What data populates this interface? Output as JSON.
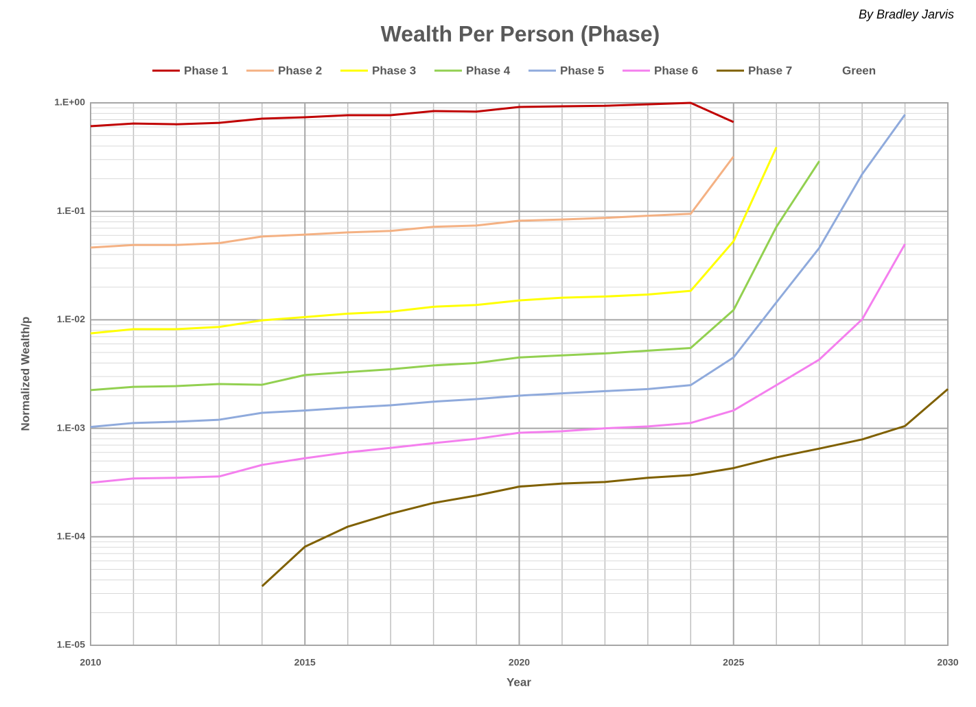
{
  "chart_data": {
    "type": "line",
    "title": "Wealth Per Person (Phase)",
    "author": "By Bradley Jarvis",
    "x_label": "Year",
    "y_label": "Normalized Wealth/p",
    "log_y": true,
    "grid": true,
    "minor_grid": true,
    "legend": "top",
    "xlim": [
      2010,
      2030
    ],
    "xticks": [
      2010,
      2015,
      2020,
      2025,
      2030
    ],
    "ylim": [
      1e-05,
      1
    ],
    "yticks": [
      {
        "value": 1,
        "label": "1.E+00"
      },
      {
        "value": 0.1,
        "label": "1.E-01"
      },
      {
        "value": 0.01,
        "label": "1.E-02"
      },
      {
        "value": 0.001,
        "label": "1.E-03"
      },
      {
        "value": 0.0001,
        "label": "1.E-04"
      },
      {
        "value": 1e-05,
        "label": "1.E-05"
      }
    ],
    "x": [
      2010,
      2011,
      2012,
      2013,
      2014,
      2015,
      2016,
      2017,
      2018,
      2019,
      2020,
      2021,
      2022,
      2023,
      2024,
      2025,
      2026,
      2027,
      2028,
      2029,
      2030
    ],
    "series": [
      {
        "name": "Phase 1",
        "color": "#c00000",
        "values": [
          0.61,
          0.645,
          0.635,
          0.655,
          0.715,
          0.737,
          0.77,
          0.77,
          0.84,
          0.83,
          0.916,
          0.93,
          0.94,
          0.97,
          1.0,
          0.665,
          null,
          null,
          null,
          null,
          null
        ]
      },
      {
        "name": "Phase 2",
        "color": "#f4b183",
        "values": [
          0.0464,
          0.049,
          0.049,
          0.051,
          0.0586,
          0.061,
          0.064,
          0.066,
          0.072,
          0.074,
          0.082,
          0.084,
          0.087,
          0.091,
          0.095,
          0.32,
          null,
          null,
          null,
          null,
          null
        ]
      },
      {
        "name": "Phase 3",
        "color": "#ffff00",
        "values": [
          0.0075,
          0.0082,
          0.0082,
          0.0086,
          0.0099,
          0.0106,
          0.0114,
          0.0119,
          0.0132,
          0.0137,
          0.0151,
          0.016,
          0.0164,
          0.0171,
          0.0185,
          0.053,
          0.39,
          null,
          null,
          null,
          null
        ]
      },
      {
        "name": "Phase 4",
        "color": "#92d050",
        "values": [
          0.00225,
          0.00241,
          0.00245,
          0.00256,
          0.00252,
          0.0031,
          0.0033,
          0.0035,
          0.0038,
          0.004,
          0.0045,
          0.0047,
          0.0049,
          0.0052,
          0.0055,
          0.0123,
          0.072,
          0.29,
          null,
          null,
          null
        ]
      },
      {
        "name": "Phase 5",
        "color": "#8faadc",
        "values": [
          0.00103,
          0.00112,
          0.00115,
          0.0012,
          0.00139,
          0.00146,
          0.00155,
          0.00163,
          0.00176,
          0.00186,
          0.002,
          0.0021,
          0.0022,
          0.0023,
          0.0025,
          0.0045,
          0.0145,
          0.046,
          0.22,
          0.78,
          null
        ]
      },
      {
        "name": "Phase 6",
        "color": "#f47fee",
        "values": [
          0.000315,
          0.000345,
          0.00035,
          0.00036,
          0.00046,
          0.00053,
          0.0006,
          0.00066,
          0.00073,
          0.0008,
          0.00091,
          0.00094,
          0.001,
          0.00104,
          0.00112,
          0.00146,
          0.0025,
          0.0043,
          0.0101,
          0.05,
          null
        ]
      },
      {
        "name": "Phase 7",
        "color": "#7f6000",
        "values": [
          null,
          null,
          null,
          null,
          3.5e-05,
          8.1e-05,
          0.000124,
          0.000163,
          0.000205,
          0.00024,
          0.00029,
          0.00031,
          0.00032,
          0.00035,
          0.00037,
          0.00043,
          0.00054,
          0.00065,
          0.00079,
          0.00105,
          0.0023
        ]
      },
      {
        "name": "Green",
        "color": "#ffffff",
        "values": [
          null,
          null,
          null,
          null,
          null,
          null,
          null,
          null,
          null,
          null,
          null,
          null,
          null,
          null,
          null,
          null,
          null,
          null,
          null,
          null,
          null
        ]
      }
    ]
  }
}
